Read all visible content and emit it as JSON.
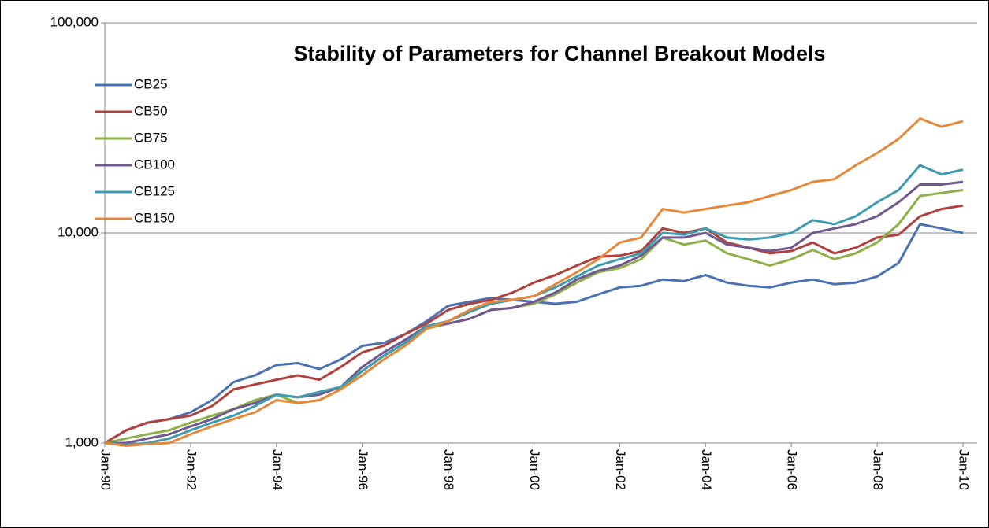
{
  "chart_data": {
    "type": "line",
    "title": "Stability of Parameters for Channel Breakout Models",
    "categories": [
      "Jan-90",
      null,
      null,
      null,
      "Jan-92",
      null,
      null,
      null,
      "Jan-94",
      null,
      null,
      null,
      "Jan-96",
      null,
      null,
      null,
      "Jan-98",
      null,
      null,
      null,
      "Jan-00",
      null,
      null,
      null,
      "Jan-02",
      null,
      null,
      null,
      "Jan-04",
      null,
      null,
      null,
      "Jan-06",
      null,
      null,
      null,
      "Jan-08",
      null,
      null,
      null,
      "Jan-10"
    ],
    "series": [
      {
        "name": "CB25",
        "color": "#4a72b0",
        "values": [
          1000,
          1150,
          1250,
          1300,
          1400,
          1600,
          1950,
          2100,
          2350,
          2400,
          2250,
          2500,
          2900,
          3000,
          3300,
          3800,
          4500,
          4700,
          4900,
          4800,
          4700,
          4600,
          4700,
          5100,
          5500,
          5600,
          6000,
          5900,
          6300,
          5800,
          5600,
          5500,
          5800,
          6000,
          5700,
          5800,
          6200,
          7200,
          11000,
          10500,
          10000
        ]
      },
      {
        "name": "CB50",
        "color": "#b0413e",
        "values": [
          1000,
          1150,
          1250,
          1300,
          1350,
          1500,
          1800,
          1900,
          2000,
          2100,
          2000,
          2300,
          2700,
          2900,
          3300,
          3700,
          4300,
          4600,
          4800,
          5200,
          5800,
          6300,
          7000,
          7700,
          7800,
          8200,
          10500,
          10000,
          10500,
          9000,
          8500,
          8000,
          8200,
          9000,
          8000,
          8500,
          9500,
          9800,
          12000,
          13000,
          13500
        ]
      },
      {
        "name": "CB75",
        "color": "#8db04a",
        "values": [
          1000,
          1050,
          1100,
          1150,
          1250,
          1350,
          1450,
          1600,
          1700,
          1550,
          1600,
          1800,
          2200,
          2600,
          3000,
          3500,
          3700,
          3900,
          4300,
          4400,
          4600,
          5100,
          5800,
          6500,
          6800,
          7500,
          9500,
          8800,
          9200,
          8000,
          7500,
          7000,
          7500,
          8300,
          7500,
          8000,
          9000,
          11000,
          15000,
          15500,
          16000
        ]
      },
      {
        "name": "CB100",
        "color": "#71588f",
        "values": [
          1000,
          1000,
          1050,
          1100,
          1200,
          1300,
          1450,
          1550,
          1700,
          1650,
          1700,
          1850,
          2300,
          2700,
          3100,
          3600,
          3700,
          3900,
          4300,
          4400,
          4700,
          5200,
          6000,
          6600,
          7000,
          7800,
          9500,
          9500,
          10000,
          8800,
          8500,
          8200,
          8500,
          10000,
          10500,
          11000,
          12000,
          14000,
          17000,
          17000,
          17500
        ]
      },
      {
        "name": "CB125",
        "color": "#3e9cb0",
        "values": [
          1000,
          980,
          1000,
          1050,
          1150,
          1250,
          1350,
          1500,
          1700,
          1650,
          1750,
          1850,
          2200,
          2600,
          3000,
          3600,
          3800,
          4200,
          4600,
          4800,
          5000,
          5500,
          6200,
          7000,
          7500,
          8000,
          10000,
          9800,
          10500,
          9500,
          9300,
          9500,
          10000,
          11500,
          11000,
          12000,
          14000,
          16000,
          21000,
          19000,
          20000
        ]
      },
      {
        "name": "CB150",
        "color": "#e7873a",
        "values": [
          1000,
          970,
          990,
          1000,
          1100,
          1200,
          1300,
          1400,
          1600,
          1550,
          1600,
          1800,
          2100,
          2500,
          2900,
          3500,
          3800,
          4300,
          4700,
          4800,
          5000,
          5700,
          6500,
          7500,
          9000,
          9500,
          13000,
          12500,
          13000,
          13500,
          14000,
          15000,
          16000,
          17500,
          18000,
          21000,
          24000,
          28000,
          35000,
          32000,
          34000
        ]
      }
    ],
    "ylim": [
      1000,
      100000
    ],
    "yticks": [
      {
        "value": 1000,
        "label": "1,000"
      },
      {
        "value": 10000,
        "label": "10,000"
      },
      {
        "value": 100000,
        "label": "100,000"
      }
    ],
    "log_scale": true,
    "grid": true,
    "legend": "upper-left"
  }
}
